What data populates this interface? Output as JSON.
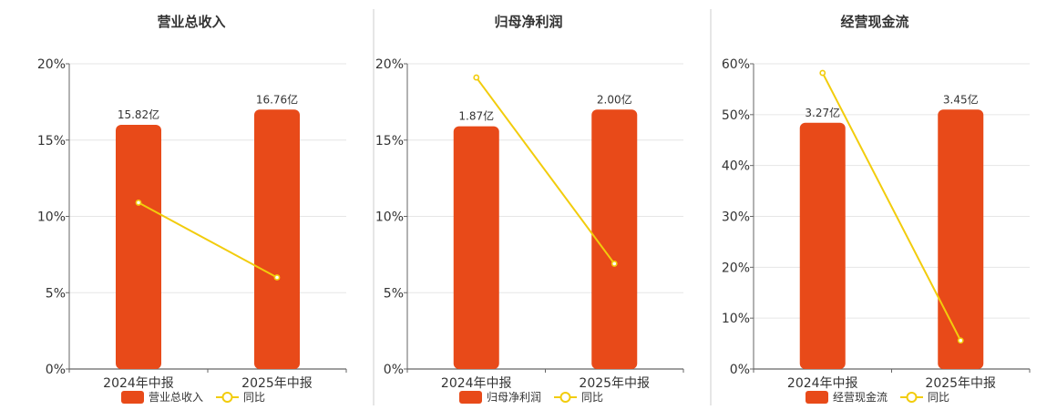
{
  "colors": {
    "bar": "#E84A19",
    "line": "#F2CC0C",
    "text": "#333333",
    "axis": "#666666",
    "grid": "#E6E6E6",
    "divider": "#CCCCCC"
  },
  "chart_data": [
    {
      "type": "bar",
      "title": "营业总收入",
      "categories": [
        "2024年中报",
        "2025年中报"
      ],
      "ylim": [
        0,
        20
      ],
      "ticks": [
        "0%",
        "5%",
        "10%",
        "15%",
        "20%"
      ],
      "grid": true,
      "legend_position": "bottom",
      "series": [
        {
          "name": "营业总收入",
          "kind": "bar",
          "values": [
            16,
            17
          ],
          "labels": [
            "15.82亿",
            "16.76亿"
          ]
        },
        {
          "name": "同比",
          "kind": "line",
          "values": [
            10.9,
            6.0
          ]
        }
      ]
    },
    {
      "type": "bar",
      "title": "归母净利润",
      "categories": [
        "2024年中报",
        "2025年中报"
      ],
      "ylim": [
        0,
        20
      ],
      "ticks": [
        "0%",
        "5%",
        "10%",
        "15%",
        "20%"
      ],
      "grid": true,
      "legend_position": "bottom",
      "series": [
        {
          "name": "归母净利润",
          "kind": "bar",
          "values": [
            15.9,
            17
          ],
          "labels": [
            "1.87亿",
            "2.00亿"
          ]
        },
        {
          "name": "同比",
          "kind": "line",
          "values": [
            19.1,
            6.9
          ]
        }
      ]
    },
    {
      "type": "bar",
      "title": "经营现金流",
      "categories": [
        "2024年中报",
        "2025年中报"
      ],
      "ylim": [
        0,
        60
      ],
      "ticks": [
        "0%",
        "10%",
        "20%",
        "30%",
        "40%",
        "50%",
        "60%"
      ],
      "grid": true,
      "legend_position": "bottom",
      "series": [
        {
          "name": "经营现金流",
          "kind": "bar",
          "values": [
            48.4,
            51
          ],
          "labels": [
            "3.27亿",
            "3.45亿"
          ]
        },
        {
          "name": "同比",
          "kind": "line",
          "values": [
            58.2,
            5.6
          ]
        }
      ]
    }
  ]
}
